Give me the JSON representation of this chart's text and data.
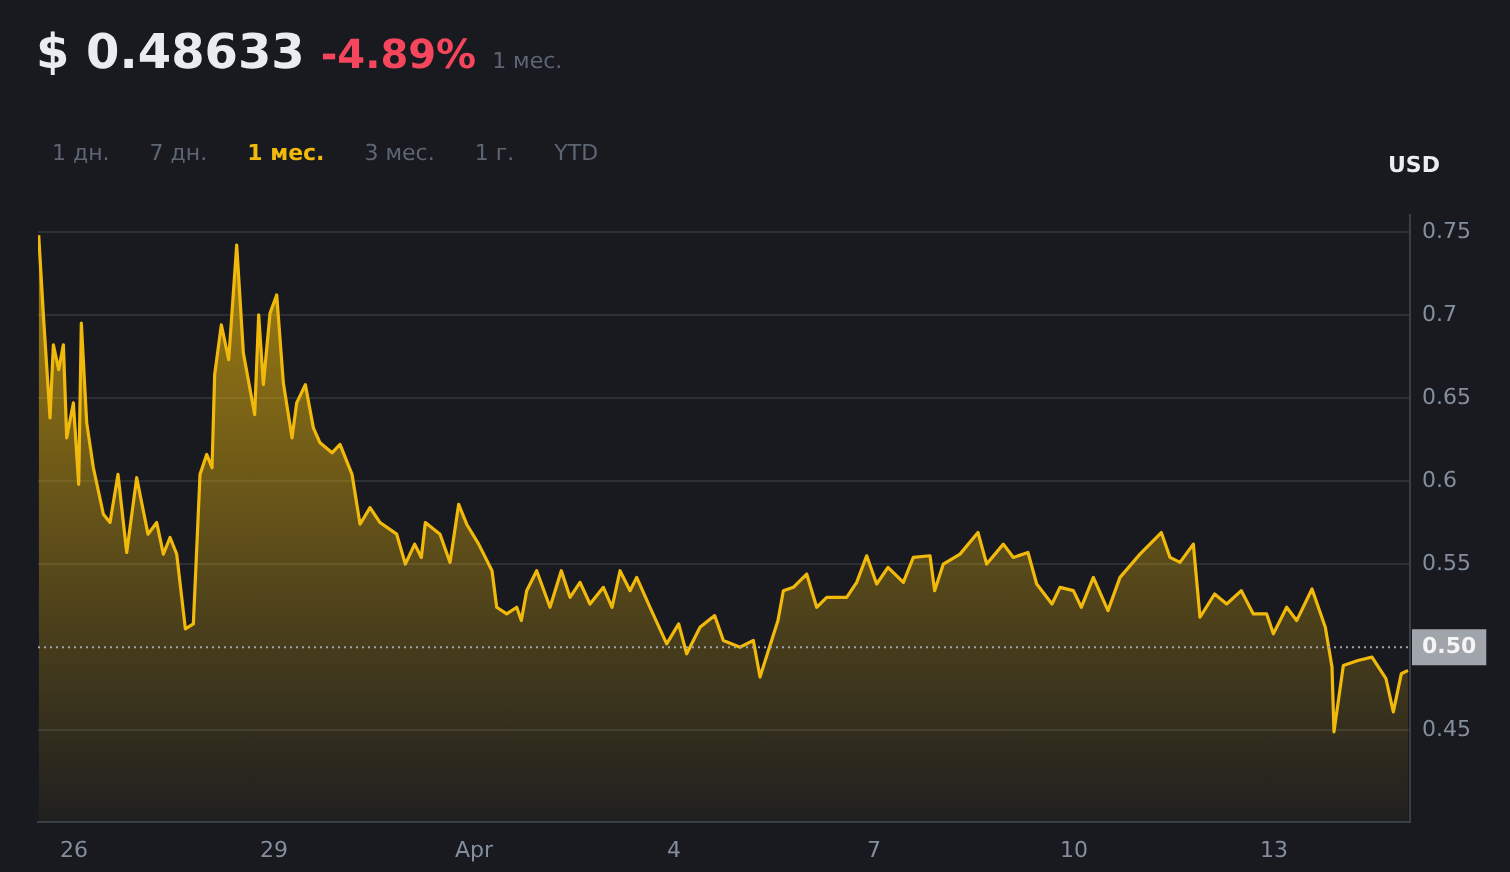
{
  "chart_data": {
    "type": "area",
    "title": "$ 0.48633",
    "subtitle": "-4.89%",
    "ylabel": "USD",
    "annotations": [
      "1 мес.",
      "1 дн.",
      "7 дн.",
      "1 мес.",
      "3 мес.",
      "1 г.",
      "YTD"
    ],
    "xlim": [
      "--03-25T11:02",
      "--04-15T00:58"
    ],
    "xticks": [
      {
        "value": "--03-26",
        "label": "26"
      },
      {
        "value": "--03-29",
        "label": "29"
      },
      {
        "value": "--04-01",
        "label": "Apr"
      },
      {
        "value": "--04-04",
        "label": "4"
      },
      {
        "value": "--04-07",
        "label": "7"
      },
      {
        "value": "--04-10",
        "label": "10"
      },
      {
        "value": "--04-13",
        "label": "13"
      }
    ],
    "ylim": [
      0.395,
      0.76
    ],
    "yticks": [
      0.45,
      0.55,
      0.6,
      0.65,
      0.7,
      0.75
    ],
    "grid": "y",
    "legend": false,
    "marker": "none",
    "line_style": "solid",
    "ref_lines": [
      {
        "axis": "y",
        "value": 0.5,
        "label": "0.50",
        "color": "#a0a4ab",
        "line_style": "dotted"
      }
    ],
    "series": [
      {
        "color": "#f0b90b",
        "x": [
          "--03-25T11:17",
          "--03-25T12:58",
          "--03-25T15:22",
          "--03-25T16:34",
          "--03-25T18:29",
          "--03-25T20:10",
          "--03-25T21:22",
          "--03-25T23:46",
          "--03-26T01:41",
          "--03-26T02:38",
          "--03-26T04:34",
          "--03-26T06:58",
          "--03-26T10:34",
          "--03-26T12:58",
          "--03-26T15:50",
          "--03-26T18:58",
          "--03-26T22:34",
          "--03-27T02:38",
          "--03-27T05:46",
          "--03-27T08:10",
          "--03-27T10:34",
          "--03-27T12:58",
          "--03-27T16:05",
          "--03-27T18:58",
          "--03-27T21:22",
          "--03-27T23:46",
          "--03-28T01:41",
          "--03-28T02:38",
          "--03-28T05:02",
          "--03-28T07:41",
          "--03-28T10:34",
          "--03-28T12:58",
          "--03-28T17:02",
          "--03-28T18:29",
          "--03-28T20:10",
          "--03-28T22:34",
          "--03-29T00:58",
          "--03-29T03:22",
          "--03-29T06:29",
          "--03-29T08:10",
          "--03-29T11:17",
          "--03-29T14:10",
          "--03-29T16:34",
          "--03-29T20:53",
          "--03-29T23:46",
          "--03-30T04:05",
          "--03-30T06:58",
          "--03-30T10:34",
          "--03-30T14:10",
          "--03-30T20:10",
          "--03-30T23:17",
          "--03-31T02:38",
          "--03-31T05:02",
          "--03-31T06:29",
          "--03-31T11:46",
          "--03-31T15:22",
          "--03-31T18:29",
          "--03-31T21:22",
          "--04-01T01:41",
          "--04-01T06:29",
          "--04-01T08:10",
          "--04-01T11:46",
          "--04-01T15:22",
          "--04-01T17:02",
          "--04-01T18:58",
          "--04-01T22:34",
          "--04-02T03:22",
          "--04-02T07:26",
          "--04-02T10:34",
          "--04-02T14:10",
          "--04-02T17:46",
          "--04-02T22:34",
          "--04-03T01:41",
          "--04-03T04:34",
          "--04-03T08:10",
          "--04-03T10:34",
          "--04-03T15:22",
          "--04-03T21:22",
          "--04-04T01:41",
          "--04-04T04:34",
          "--04-04T09:22",
          "--04-04T14:38",
          "--04-04T17:46",
          "--04-04T23:46",
          "--04-05T04:34",
          "--04-05T06:58",
          "--04-05T10:34",
          "--04-05T13:26",
          "--04-05T15:22",
          "--04-05T18:58",
          "--04-05T23:46",
          "--04-06T03:22",
          "--04-06T06:58",
          "--04-06T14:10",
          "--04-06T17:46",
          "--04-06T21:22",
          "--04-07T00:58",
          "--04-07T05:02",
          "--04-07T10:34",
          "--04-07T14:10",
          "--04-07T20:10",
          "--04-07T21:50",
          "--04-08T00:58",
          "--04-08T06:58",
          "--04-08T13:26",
          "--04-08T16:34",
          "--04-08T22:34",
          "--04-09T02:10",
          "--04-09T07:26",
          "--04-09T10:34",
          "--04-09T16:05",
          "--04-09T18:58",
          "--04-09T23:46",
          "--04-10T02:38",
          "--04-10T06:58",
          "--04-10T12:14",
          "--04-10T16:34",
          "--04-10T23:46",
          "--04-11T07:26",
          "--04-11T10:34",
          "--04-11T14:10",
          "--04-11T18:58",
          "--04-11T21:22",
          "--04-12T02:38",
          "--04-12T06:58",
          "--04-12T12:14",
          "--04-12T16:34",
          "--04-12T21:22",
          "--04-12T23:46",
          "--04-13T04:34",
          "--04-13T08:10",
          "--04-13T13:41",
          "--04-13T18:29",
          "--04-13T20:53",
          "--04-13T21:36",
          "--04-14T00:58",
          "--04-14T06:14",
          "--04-14T11:17",
          "--04-14T16:19",
          "--04-14T18:58",
          "--04-14T21:50",
          "--04-15T00:14"
        ],
        "values": [
          0.748,
          0.7,
          0.638,
          0.682,
          0.667,
          0.682,
          0.626,
          0.647,
          0.598,
          0.695,
          0.635,
          0.608,
          0.58,
          0.575,
          0.604,
          0.557,
          0.602,
          0.568,
          0.575,
          0.556,
          0.566,
          0.556,
          0.511,
          0.514,
          0.604,
          0.616,
          0.608,
          0.664,
          0.694,
          0.673,
          0.742,
          0.677,
          0.64,
          0.7,
          0.658,
          0.701,
          0.712,
          0.659,
          0.626,
          0.647,
          0.658,
          0.632,
          0.623,
          0.617,
          0.622,
          0.604,
          0.574,
          0.584,
          0.575,
          0.568,
          0.55,
          0.562,
          0.554,
          0.575,
          0.568,
          0.551,
          0.586,
          0.574,
          0.562,
          0.546,
          0.524,
          0.52,
          0.524,
          0.516,
          0.534,
          0.546,
          0.524,
          0.546,
          0.53,
          0.539,
          0.526,
          0.536,
          0.524,
          0.546,
          0.534,
          0.542,
          0.524,
          0.502,
          0.514,
          0.496,
          0.512,
          0.519,
          0.504,
          0.5,
          0.504,
          0.482,
          0.501,
          0.516,
          0.534,
          0.536,
          0.544,
          0.524,
          0.53,
          0.53,
          0.539,
          0.555,
          0.538,
          0.548,
          0.539,
          0.554,
          0.555,
          0.534,
          0.55,
          0.556,
          0.569,
          0.55,
          0.562,
          0.554,
          0.557,
          0.538,
          0.526,
          0.536,
          0.534,
          0.524,
          0.542,
          0.522,
          0.542,
          0.556,
          0.569,
          0.554,
          0.551,
          0.562,
          0.518,
          0.532,
          0.526,
          0.534,
          0.52,
          0.52,
          0.508,
          0.524,
          0.516,
          0.535,
          0.512,
          0.488,
          0.449,
          0.489,
          0.492,
          0.494,
          0.481,
          0.461,
          0.484,
          0.486
        ]
      }
    ]
  }
}
